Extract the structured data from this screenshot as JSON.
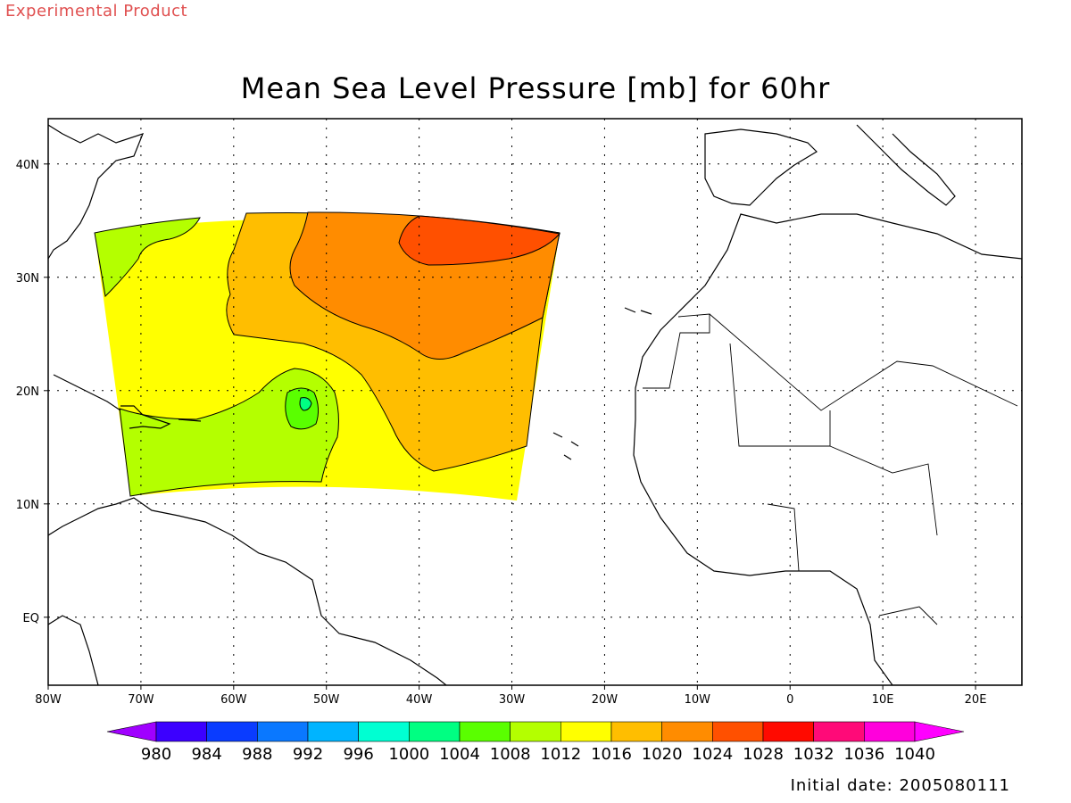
{
  "banner": "Experimental Product",
  "title": "Mean Sea Level Pressure [mb] for 60hr",
  "footer": "Initial date: 2005080111",
  "map": {
    "lon_range": [
      -80,
      25
    ],
    "lat_range": [
      -6,
      44
    ],
    "lon_ticks": [
      {
        "value": -80,
        "label": "80W"
      },
      {
        "value": -70,
        "label": "70W"
      },
      {
        "value": -60,
        "label": "60W"
      },
      {
        "value": -50,
        "label": "50W"
      },
      {
        "value": -40,
        "label": "40W"
      },
      {
        "value": -30,
        "label": "30W"
      },
      {
        "value": -20,
        "label": "20W"
      },
      {
        "value": -10,
        "label": "10W"
      },
      {
        "value": 0,
        "label": "0"
      },
      {
        "value": 10,
        "label": "10E"
      },
      {
        "value": 20,
        "label": "20E"
      }
    ],
    "lat_ticks": [
      {
        "value": 40,
        "label": "40N"
      },
      {
        "value": 30,
        "label": "30N"
      },
      {
        "value": 20,
        "label": "20N"
      },
      {
        "value": 10,
        "label": "10N"
      },
      {
        "value": 0,
        "label": "EQ"
      }
    ],
    "grid": true,
    "domain_color_default": "#ffff00"
  },
  "colorbar": {
    "levels": [
      "980",
      "984",
      "988",
      "992",
      "996",
      "1000",
      "1004",
      "1008",
      "1012",
      "1016",
      "1020",
      "1024",
      "1028",
      "1032",
      "1036",
      "1040"
    ],
    "colors": [
      "#a000ff",
      "#3c00ff",
      "#0a3cff",
      "#0a78ff",
      "#00b4ff",
      "#00ffd2",
      "#00ff82",
      "#5aff00",
      "#b4ff00",
      "#ffff00",
      "#ffbe00",
      "#ff8c00",
      "#ff5000",
      "#ff0a00",
      "#ff0a78",
      "#ff00dc",
      "#ff00ff"
    ]
  },
  "pressure_regions": [
    {
      "level": "1020",
      "color": "#ffbe00"
    },
    {
      "level": "1024",
      "color": "#ff8c00"
    },
    {
      "level": "1028",
      "color": "#ff5000"
    },
    {
      "level": "1012",
      "color": "#b4ff00"
    },
    {
      "level": "1008",
      "color": "#5aff00"
    },
    {
      "level": "1004",
      "color": "#00ff82"
    }
  ]
}
